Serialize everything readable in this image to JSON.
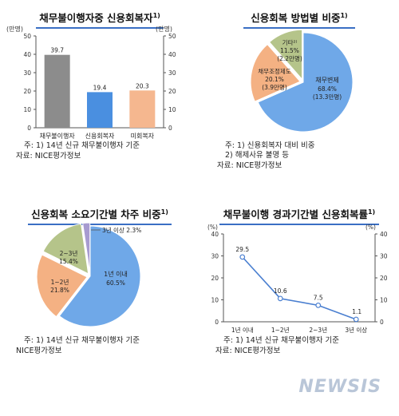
{
  "charts": {
    "c1": {
      "title": "채무불이행자중 신용회복자",
      "sup": "1)",
      "notes": [
        "주: 1) 14년 신규 채무불이행자 기준",
        "자료: NICE평가정보"
      ]
    },
    "c2": {
      "title": "신용회복 방법별 비중",
      "sup": "1)",
      "notes": [
        "주: 1) 신용회복자 대비 비중",
        "      2) 해제사유 불명 등",
        "자료: NICE평가정보"
      ]
    },
    "c3": {
      "title": "신용회복 소요기간별 차주 비중",
      "sup": "1)",
      "notes": [
        "주: 1) 14년 신규 채무불이행자 기준",
        "NICE평가정보"
      ]
    },
    "c4": {
      "title": "채무불이행 경과기간별 신용회복률",
      "sup": "1)",
      "notes": [
        "주: 1) 14년 신규 채무불이행자 기준",
        "자료: NICE평가정보"
      ]
    }
  },
  "watermark": "NEWSIS",
  "chart_data": [
    {
      "type": "bar",
      "title": "채무불이행자중 신용회복자",
      "ylabel_left": "(만명)",
      "ylabel_right": "(만명)",
      "ylim": [
        0,
        50
      ],
      "yticks": [
        0,
        10,
        20,
        30,
        40,
        50
      ],
      "categories": [
        "채무불이행자",
        "신용회복자",
        "미회복자"
      ],
      "values": [
        39.7,
        19.4,
        20.3
      ],
      "colors": [
        "#8c8c8c",
        "#4a8fe0",
        "#f5b78f"
      ]
    },
    {
      "type": "pie",
      "title": "신용회복 방법별 비중",
      "slices": [
        {
          "label": "채무변제",
          "pct": "68.4%",
          "count": "(13.3만명)",
          "value": 68.4,
          "color": "#6fa8e8"
        },
        {
          "label": "채무조정제도",
          "pct": "20.1%",
          "count": "(3.9만명)",
          "value": 20.1,
          "color": "#f4b183"
        },
        {
          "label": "기타²⁾",
          "pct": "11.5%",
          "count": "(2.2만명)",
          "value": 11.5,
          "color": "#b5c48a"
        }
      ]
    },
    {
      "type": "pie",
      "title": "신용회복 소요기간별 차주 비중",
      "slices": [
        {
          "label": "1년 이내",
          "pct": "60.5%",
          "value": 60.5,
          "color": "#6fa8e8"
        },
        {
          "label": "1~2년",
          "pct": "21.8%",
          "value": 21.8,
          "color": "#f4b183"
        },
        {
          "label": "2~3년",
          "pct": "15.4%",
          "value": 15.4,
          "color": "#b5c48a"
        },
        {
          "label": "3년 이상",
          "pct": "2.3%",
          "value": 2.3,
          "color": "#a79bd0"
        }
      ]
    },
    {
      "type": "line",
      "title": "채무불이행 경과기간별 신용회복률",
      "ylabel_left": "(%)",
      "ylabel_right": "(%)",
      "ylim": [
        0,
        40
      ],
      "yticks": [
        0,
        10,
        20,
        30,
        40
      ],
      "categories": [
        "1년 이내",
        "1~2년",
        "2~3년",
        "3년 이상"
      ],
      "values": [
        29.5,
        10.6,
        7.5,
        1.1
      ],
      "color": "#4a7fd0"
    }
  ]
}
